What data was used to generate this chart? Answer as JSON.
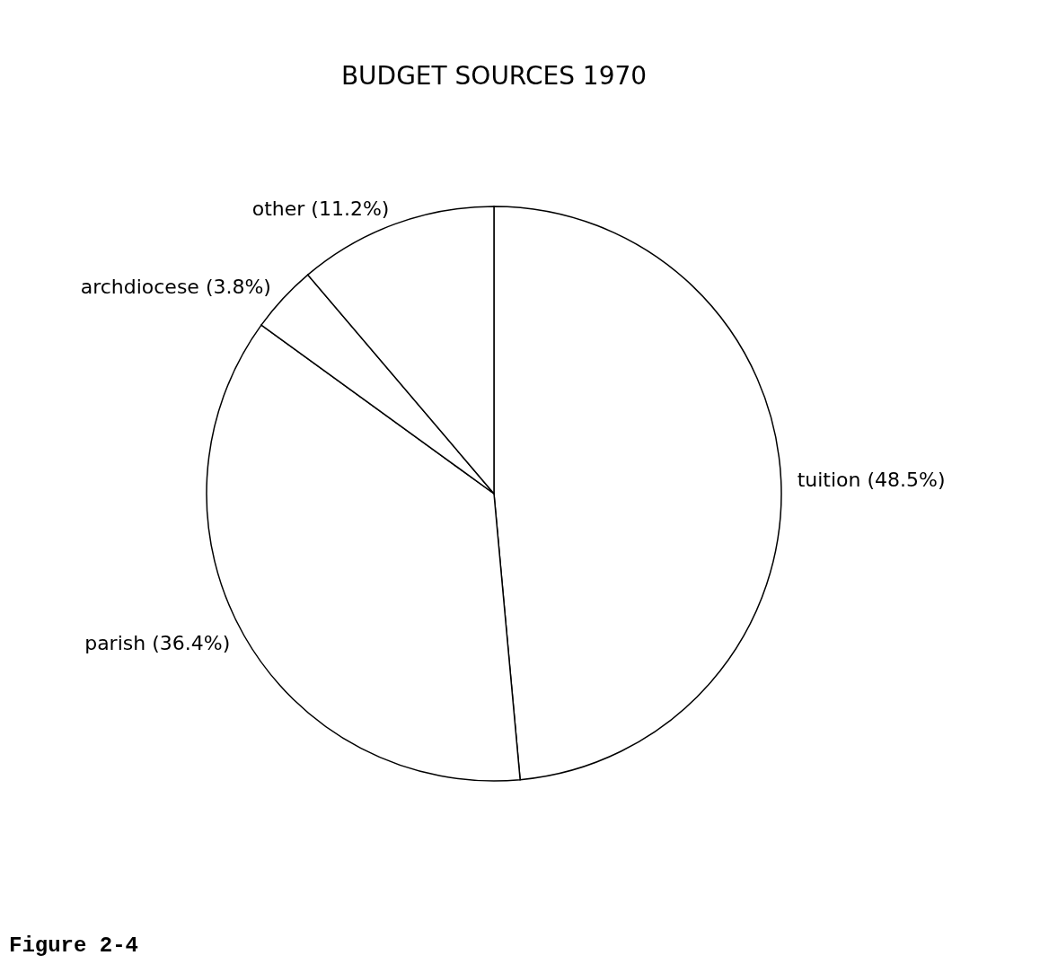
{
  "chart_data": {
    "type": "pie",
    "title": "BUDGET SOURCES 1970",
    "categories": [
      "tuition (48.5%)",
      "parish (36.4%)",
      "archdiocese (3.8%)",
      "other (11.2%)"
    ],
    "values": [
      48.5,
      36.4,
      3.8,
      11.2
    ],
    "colors": [
      "#ffffff",
      "#ffffff",
      "#ffffff",
      "#ffffff"
    ],
    "legend": false,
    "annotations": [
      "Figure 2-4"
    ]
  }
}
